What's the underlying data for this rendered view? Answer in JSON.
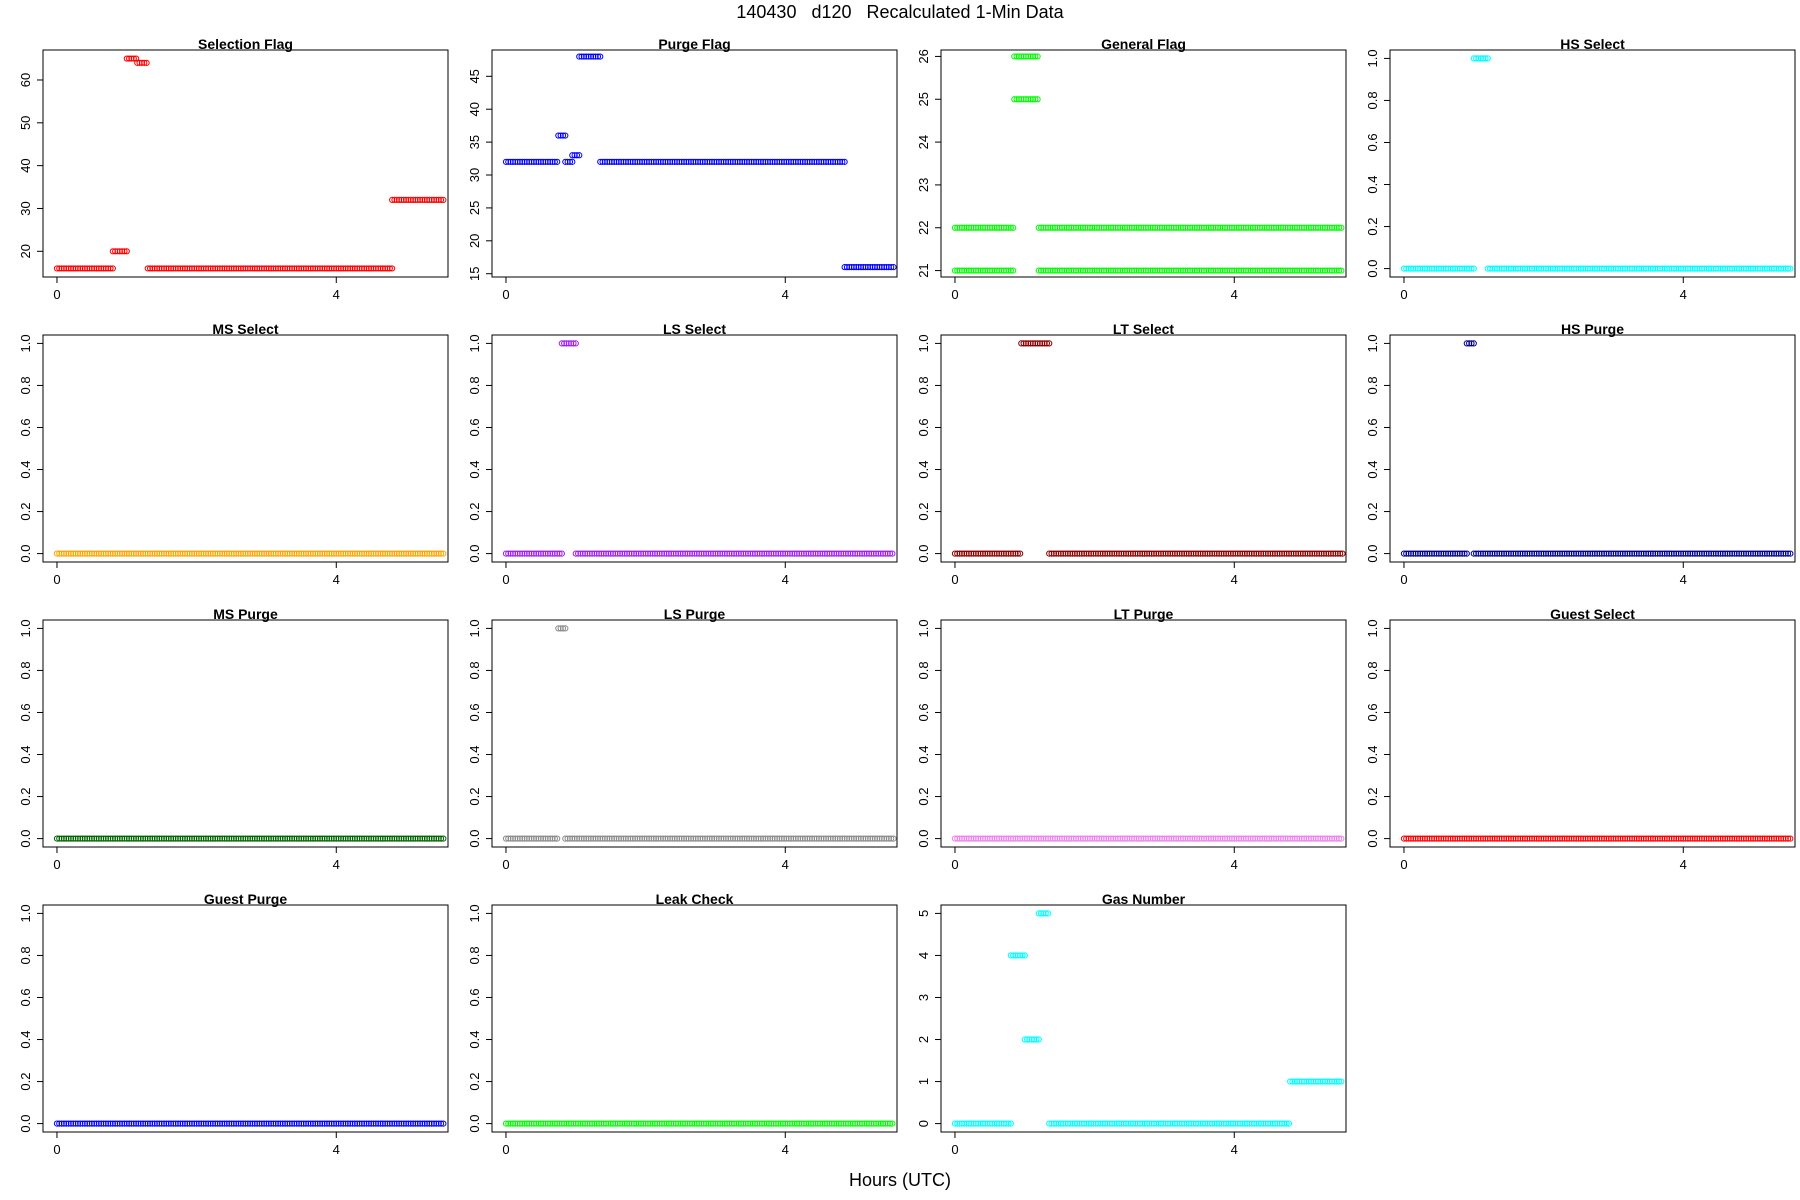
{
  "figure": {
    "title": "140430   d120   Recalculated 1-Min Data",
    "xlabel": "Hours (UTC)"
  },
  "chart_data": [
    {
      "type": "scatter",
      "title": "Selection Flag",
      "color": "#ff0000",
      "xlim": [
        -0.2,
        5.6
      ],
      "ylim": [
        14,
        67
      ],
      "xticks": [
        0,
        4
      ],
      "yticks": [
        20,
        30,
        40,
        50,
        60
      ],
      "segments": [
        {
          "x": [
            0,
            0.8
          ],
          "y": 16
        },
        {
          "x": [
            0.8,
            1.0
          ],
          "y": 20
        },
        {
          "x": [
            1.0,
            1.15
          ],
          "y": 65
        },
        {
          "x": [
            1.15,
            1.3
          ],
          "y": 64
        },
        {
          "x": [
            1.3,
            4.8
          ],
          "y": 16
        },
        {
          "x": [
            4.8,
            5.55
          ],
          "y": 32
        }
      ]
    },
    {
      "type": "scatter",
      "title": "Purge Flag",
      "color": "#0000ff",
      "xlim": [
        -0.2,
        5.6
      ],
      "ylim": [
        14.5,
        49
      ],
      "xticks": [
        0,
        4
      ],
      "yticks": [
        15,
        20,
        25,
        30,
        35,
        40,
        45
      ],
      "segments": [
        {
          "x": [
            0,
            0.75
          ],
          "y": 32
        },
        {
          "x": [
            0.75,
            0.85
          ],
          "y": 36
        },
        {
          "x": [
            0.85,
            0.95
          ],
          "y": 32
        },
        {
          "x": [
            0.95,
            1.05
          ],
          "y": 33
        },
        {
          "x": [
            1.05,
            1.35
          ],
          "y": 48
        },
        {
          "x": [
            1.35,
            4.85
          ],
          "y": 32
        },
        {
          "x": [
            4.85,
            5.55
          ],
          "y": 16
        }
      ]
    },
    {
      "type": "scatter",
      "title": "General Flag",
      "color": "#00ff00",
      "xlim": [
        -0.2,
        5.6
      ],
      "ylim": [
        20.85,
        26.15
      ],
      "xticks": [
        0,
        4
      ],
      "yticks": [
        21,
        22,
        23,
        24,
        25,
        26
      ],
      "segments": [
        {
          "x": [
            0,
            0.85
          ],
          "y": 22
        },
        {
          "x": [
            0,
            0.85
          ],
          "y": 21
        },
        {
          "x": [
            0.85,
            1.2
          ],
          "y": 26
        },
        {
          "x": [
            0.85,
            1.2
          ],
          "y": 25
        },
        {
          "x": [
            1.2,
            5.55
          ],
          "y": 22
        },
        {
          "x": [
            1.2,
            5.55
          ],
          "y": 21
        }
      ]
    },
    {
      "type": "scatter",
      "title": "HS Select",
      "color": "#00ffff",
      "xlim": [
        -0.2,
        5.6
      ],
      "ylim": [
        -0.04,
        1.04
      ],
      "xticks": [
        0,
        4
      ],
      "yticks": [
        0.0,
        0.2,
        0.4,
        0.6,
        0.8,
        1.0
      ],
      "segments": [
        {
          "x": [
            0,
            1.0
          ],
          "y": 0
        },
        {
          "x": [
            1.0,
            1.2
          ],
          "y": 1
        },
        {
          "x": [
            1.2,
            5.55
          ],
          "y": 0
        }
      ]
    },
    {
      "type": "scatter",
      "title": "MS Select",
      "color": "#ffa500",
      "xlim": [
        -0.2,
        5.6
      ],
      "ylim": [
        -0.04,
        1.04
      ],
      "xticks": [
        0,
        4
      ],
      "yticks": [
        0.0,
        0.2,
        0.4,
        0.6,
        0.8,
        1.0
      ],
      "segments": [
        {
          "x": [
            0,
            5.55
          ],
          "y": 0
        }
      ]
    },
    {
      "type": "scatter",
      "title": "LS Select",
      "color": "#a020f0",
      "xlim": [
        -0.2,
        5.6
      ],
      "ylim": [
        -0.04,
        1.04
      ],
      "xticks": [
        0,
        4
      ],
      "yticks": [
        0.0,
        0.2,
        0.4,
        0.6,
        0.8,
        1.0
      ],
      "segments": [
        {
          "x": [
            0,
            0.8
          ],
          "y": 0
        },
        {
          "x": [
            0.8,
            1.0
          ],
          "y": 1
        },
        {
          "x": [
            1.0,
            5.55
          ],
          "y": 0
        }
      ]
    },
    {
      "type": "scatter",
      "title": "LT Select",
      "color": "#8b0000",
      "xlim": [
        -0.2,
        5.6
      ],
      "ylim": [
        -0.04,
        1.04
      ],
      "xticks": [
        0,
        4
      ],
      "yticks": [
        0.0,
        0.2,
        0.4,
        0.6,
        0.8,
        1.0
      ],
      "segments": [
        {
          "x": [
            0,
            0.95
          ],
          "y": 0
        },
        {
          "x": [
            0.95,
            1.35
          ],
          "y": 1
        },
        {
          "x": [
            1.35,
            5.55
          ],
          "y": 0
        }
      ]
    },
    {
      "type": "scatter",
      "title": "HS Purge",
      "color": "#00008b",
      "xlim": [
        -0.2,
        5.6
      ],
      "ylim": [
        -0.04,
        1.04
      ],
      "xticks": [
        0,
        4
      ],
      "yticks": [
        0.0,
        0.2,
        0.4,
        0.6,
        0.8,
        1.0
      ],
      "segments": [
        {
          "x": [
            0,
            0.9
          ],
          "y": 0
        },
        {
          "x": [
            0.9,
            1.0
          ],
          "y": 1
        },
        {
          "x": [
            1.0,
            5.55
          ],
          "y": 0
        }
      ]
    },
    {
      "type": "scatter",
      "title": "MS Purge",
      "color": "#006400",
      "xlim": [
        -0.2,
        5.6
      ],
      "ylim": [
        -0.04,
        1.04
      ],
      "xticks": [
        0,
        4
      ],
      "yticks": [
        0.0,
        0.2,
        0.4,
        0.6,
        0.8,
        1.0
      ],
      "segments": [
        {
          "x": [
            0,
            5.55
          ],
          "y": 0
        }
      ]
    },
    {
      "type": "scatter",
      "title": "LS Purge",
      "color": "#8c8c8c",
      "xlim": [
        -0.2,
        5.6
      ],
      "ylim": [
        -0.04,
        1.04
      ],
      "xticks": [
        0,
        4
      ],
      "yticks": [
        0.0,
        0.2,
        0.4,
        0.6,
        0.8,
        1.0
      ],
      "segments": [
        {
          "x": [
            0,
            0.75
          ],
          "y": 0
        },
        {
          "x": [
            0.75,
            0.85
          ],
          "y": 1
        },
        {
          "x": [
            0.85,
            5.55
          ],
          "y": 0
        }
      ]
    },
    {
      "type": "scatter",
      "title": "LT Purge",
      "color": "#ee82ee",
      "xlim": [
        -0.2,
        5.6
      ],
      "ylim": [
        -0.04,
        1.04
      ],
      "xticks": [
        0,
        4
      ],
      "yticks": [
        0.0,
        0.2,
        0.4,
        0.6,
        0.8,
        1.0
      ],
      "segments": [
        {
          "x": [
            0,
            5.55
          ],
          "y": 0
        }
      ]
    },
    {
      "type": "scatter",
      "title": "Guest Select",
      "color": "#ff0000",
      "xlim": [
        -0.2,
        5.6
      ],
      "ylim": [
        -0.04,
        1.04
      ],
      "xticks": [
        0,
        4
      ],
      "yticks": [
        0.0,
        0.2,
        0.4,
        0.6,
        0.8,
        1.0
      ],
      "segments": [
        {
          "x": [
            0,
            5.55
          ],
          "y": 0
        }
      ]
    },
    {
      "type": "scatter",
      "title": "Guest Purge",
      "color": "#0000ff",
      "xlim": [
        -0.2,
        5.6
      ],
      "ylim": [
        -0.04,
        1.04
      ],
      "xticks": [
        0,
        4
      ],
      "yticks": [
        0.0,
        0.2,
        0.4,
        0.6,
        0.8,
        1.0
      ],
      "segments": [
        {
          "x": [
            0,
            5.55
          ],
          "y": 0
        }
      ]
    },
    {
      "type": "scatter",
      "title": "Leak Check",
      "color": "#00ff00",
      "xlim": [
        -0.2,
        5.6
      ],
      "ylim": [
        -0.04,
        1.04
      ],
      "xticks": [
        0,
        4
      ],
      "yticks": [
        0.0,
        0.2,
        0.4,
        0.6,
        0.8,
        1.0
      ],
      "segments": [
        {
          "x": [
            0,
            5.55
          ],
          "y": 0
        }
      ]
    },
    {
      "type": "scatter",
      "title": "Gas Number",
      "color": "#00ffff",
      "xlim": [
        -0.2,
        5.6
      ],
      "ylim": [
        -0.2,
        5.2
      ],
      "xticks": [
        0,
        4
      ],
      "yticks": [
        0,
        1,
        2,
        3,
        4,
        5
      ],
      "segments": [
        {
          "x": [
            0,
            0.8
          ],
          "y": 0
        },
        {
          "x": [
            0.8,
            1.0
          ],
          "y": 4
        },
        {
          "x": [
            1.0,
            1.2
          ],
          "y": 2
        },
        {
          "x": [
            1.2,
            1.35
          ],
          "y": 5
        },
        {
          "x": [
            1.35,
            4.8
          ],
          "y": 0
        },
        {
          "x": [
            4.8,
            5.55
          ],
          "y": 1
        }
      ]
    }
  ]
}
